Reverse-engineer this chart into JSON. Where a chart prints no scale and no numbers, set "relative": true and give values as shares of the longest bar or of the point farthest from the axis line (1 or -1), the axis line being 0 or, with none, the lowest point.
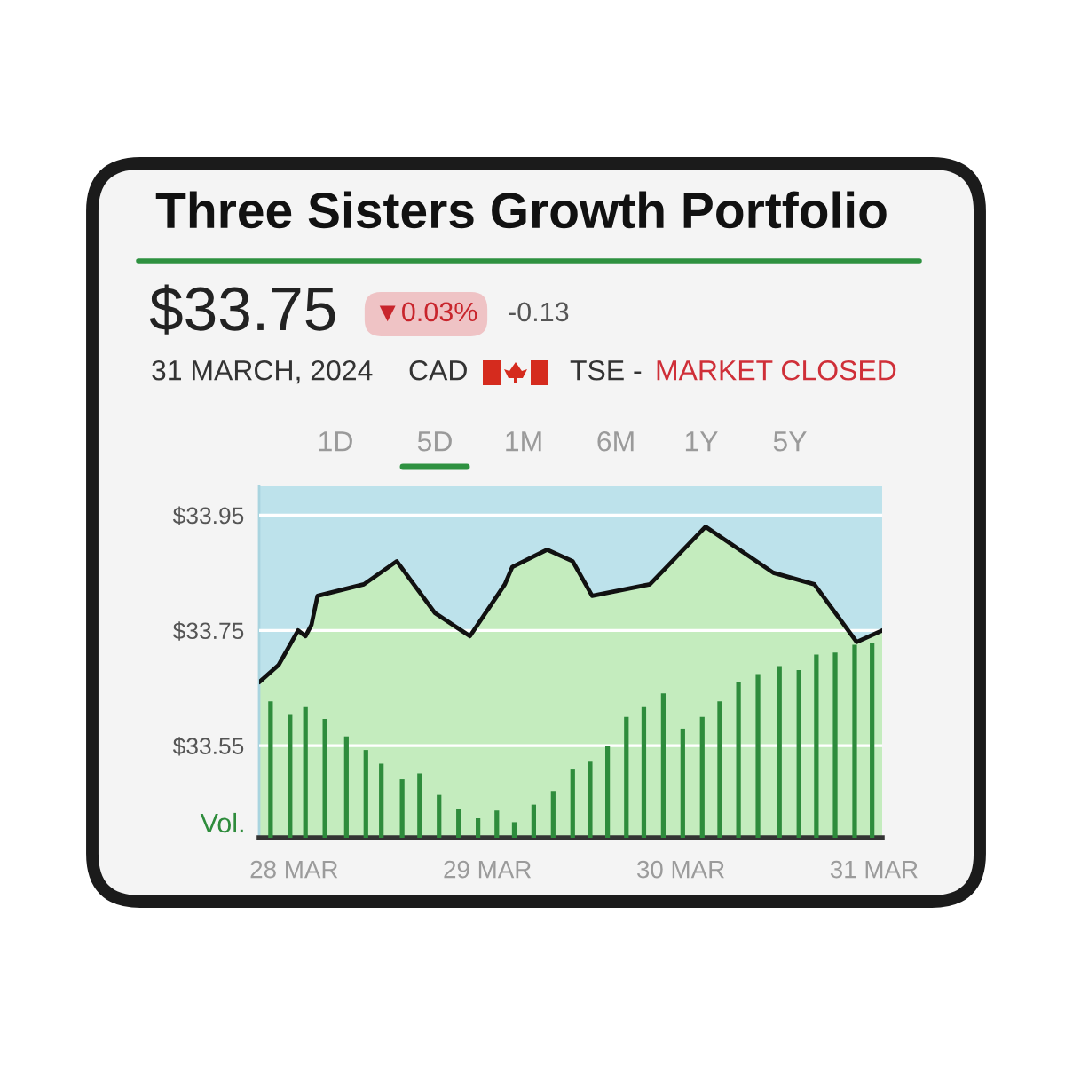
{
  "chart_data": [
    {
      "type": "area",
      "title": "Three Sisters Growth Portfolio",
      "subtitle": "$33.75",
      "annotations": [
        "▼0.03%",
        "-0.13",
        "31 MARCH, 2024",
        "CAD",
        "TSE -",
        "MARKET CLOSED",
        "1D",
        "5D",
        "1M",
        "6M",
        "1Y",
        "5Y"
      ],
      "tick_labels": "y",
      "xlim": [
        "2024-03-27T19:40",
        "2024-03-31T01:00"
      ],
      "ylim": [
        33.39,
        34.0
      ],
      "yticks": [
        {
          "value": 33.55,
          "label": "$33.55"
        },
        {
          "value": 33.75,
          "label": "$33.75"
        },
        {
          "value": 33.95,
          "label": "$33.95"
        }
      ],
      "grid": "y",
      "x": [
        "2024-03-27T19:40",
        "2024-03-27T22:05",
        "2024-03-28T00:30",
        "2024-03-28T01:25",
        "2024-03-28T02:10",
        "2024-03-28T02:55",
        "2024-03-28T08:40",
        "2024-03-28T12:45",
        "2024-03-28T17:30",
        "2024-03-28T21:50",
        "2024-03-29T02:10",
        "2024-03-29T03:05",
        "2024-03-29T07:25",
        "2024-03-29T10:35",
        "2024-03-29T13:00",
        "2024-03-29T20:10",
        "2024-03-30T03:05",
        "2024-03-30T11:30",
        "2024-03-30T16:35",
        "2024-03-30T21:50",
        "2024-03-31T01:00"
      ],
      "series": [
        {
          "color": "#c4ecbe",
          "values": [
            33.66,
            33.69,
            33.75,
            33.74,
            33.76,
            33.81,
            33.83,
            33.87,
            33.78,
            33.74,
            33.83,
            33.86,
            33.89,
            33.87,
            33.81,
            33.83,
            33.93,
            33.85,
            33.83,
            33.73,
            33.75
          ]
        }
      ]
    },
    {
      "type": "bar",
      "relative": true,
      "ylabel": "Vol.",
      "tick_labels": "x",
      "xlim": [
        "2024-03-27T19:40",
        "2024-03-31T01:00"
      ],
      "xticks": [
        {
          "value": "2024-03-28",
          "label": "28 MAR"
        },
        {
          "value": "2024-03-29",
          "label": "29 MAR"
        },
        {
          "value": "2024-03-30",
          "label": "30 MAR"
        },
        {
          "value": "2024-03-31",
          "label": "31 MAR"
        }
      ],
      "x": [
        "2024-03-27T21:05",
        "2024-03-27T23:30",
        "2024-03-28T01:25",
        "2024-03-28T03:50",
        "2024-03-28T06:30",
        "2024-03-28T08:55",
        "2024-03-28T10:50",
        "2024-03-28T13:25",
        "2024-03-28T15:35",
        "2024-03-28T18:00",
        "2024-03-28T20:25",
        "2024-03-28T22:50",
        "2024-03-29T01:10",
        "2024-03-29T03:20",
        "2024-03-29T05:45",
        "2024-03-29T08:10",
        "2024-03-29T10:35",
        "2024-03-29T12:45",
        "2024-03-29T14:55",
        "2024-03-29T17:15",
        "2024-03-29T19:25",
        "2024-03-29T21:50",
        "2024-03-30T00:15",
        "2024-03-30T02:40",
        "2024-03-30T04:50",
        "2024-03-30T07:10",
        "2024-03-30T09:35",
        "2024-03-30T12:15",
        "2024-03-30T14:40",
        "2024-03-30T16:50",
        "2024-03-30T19:10",
        "2024-03-30T21:35",
        "2024-03-30T23:45"
      ],
      "series": [
        {
          "color": "#2e8c3c",
          "values": [
            0.7,
            0.63,
            0.67,
            0.61,
            0.52,
            0.45,
            0.38,
            0.3,
            0.33,
            0.22,
            0.15,
            0.1,
            0.14,
            0.08,
            0.17,
            0.24,
            0.35,
            0.39,
            0.47,
            0.62,
            0.67,
            0.74,
            0.56,
            0.62,
            0.7,
            0.8,
            0.84,
            0.88,
            0.86,
            0.94,
            0.95,
            0.99,
            1.0
          ]
        }
      ]
    }
  ]
}
